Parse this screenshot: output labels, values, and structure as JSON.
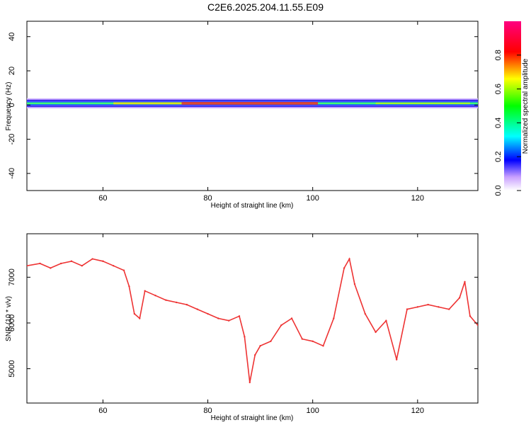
{
  "title": "C2E6.2025.204.11.55.E09",
  "chart_data": [
    {
      "type": "heatmap",
      "xlabel": "Height of straight line (km)",
      "ylabel": "Frequency (Hz)",
      "xlim": [
        45.5,
        131.5
      ],
      "ylim": [
        -50,
        49
      ],
      "xticks": [
        60,
        80,
        100,
        120
      ],
      "xtick_labels": [
        "60",
        "80",
        "100",
        "120"
      ],
      "yticks": [
        -40,
        -20,
        0,
        20,
        40
      ],
      "ytick_labels": [
        "-40",
        "-20",
        "0",
        "20",
        "40"
      ],
      "colorbar": {
        "label": "Normalized spectral amplitude",
        "range": [
          0,
          1
        ],
        "ticks": [
          0,
          0.2,
          0.4,
          0.6,
          0.8
        ],
        "tick_labels": [
          "0.0",
          "0.2",
          "0.4",
          "0.6",
          "0.8"
        ]
      },
      "band_center_hz": 1,
      "band_halfwidth_hz": 3
    },
    {
      "type": "line",
      "xlabel": "Height of straight line (km)",
      "ylabel": "SNR (10 * v/v)",
      "xlim": [
        45.5,
        131.5
      ],
      "ylim": [
        4250,
        7950
      ],
      "xticks": [
        60,
        80,
        100,
        120
      ],
      "xtick_labels": [
        "60",
        "80",
        "100",
        "120"
      ],
      "yticks": [
        5000,
        6000,
        7000
      ],
      "ytick_labels": [
        "5000",
        "6000",
        "7000"
      ],
      "color": "#ee3333",
      "series": [
        {
          "x": [
            45.5,
            48,
            50,
            52,
            54,
            56,
            58,
            60,
            62,
            64,
            65,
            66,
            67,
            68,
            70,
            72,
            74,
            76,
            78,
            80,
            82,
            84,
            86,
            87,
            88,
            89,
            90,
            92,
            94,
            96,
            98,
            100,
            102,
            104,
            106,
            107,
            108,
            110,
            112,
            114,
            116,
            118,
            120,
            122,
            124,
            126,
            128,
            129,
            130,
            131.5
          ],
          "y": [
            7250,
            7300,
            7200,
            7300,
            7350,
            7250,
            7400,
            7350,
            7250,
            7150,
            6800,
            6200,
            6100,
            6700,
            6600,
            6500,
            6450,
            6400,
            6300,
            6200,
            6100,
            6050,
            6150,
            5700,
            4700,
            5300,
            5500,
            5600,
            5950,
            6100,
            5650,
            5600,
            5500,
            6100,
            7200,
            7400,
            6850,
            6200,
            5800,
            6050,
            5200,
            6300,
            6350,
            6400,
            6350,
            6300,
            6550,
            6900,
            6150,
            5950
          ]
        }
      ]
    }
  ]
}
